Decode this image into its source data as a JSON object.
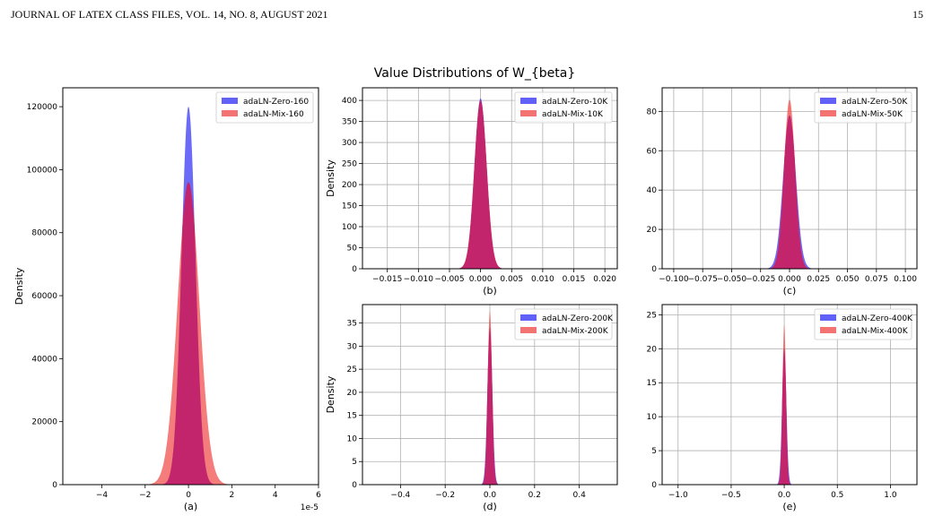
{
  "header": {
    "journal_title": "JOURNAL OF LATEX CLASS FILES, VOL. 14, NO. 8, AUGUST 2021",
    "page_number": "15"
  },
  "figure": {
    "suptitle": "Value Distributions of W_{beta}"
  },
  "colors": {
    "zero": "#3a3af5",
    "mix": "#f0504f",
    "overlap": "#c0206a",
    "grid": "#b0b0b0"
  },
  "chart_data": [
    {
      "type": "area",
      "panel": "(a)",
      "ylabel": "Density",
      "xlabel": "(a)",
      "x_offset_label": "1e-5",
      "xlim": [
        -5.8,
        6.0
      ],
      "ylim": [
        0,
        126000
      ],
      "xticks": [
        -4,
        -2,
        0,
        2,
        4,
        6
      ],
      "xtick_labels": [
        "−4",
        "−2",
        "0",
        "2",
        "4",
        "6"
      ],
      "yticks": [
        0,
        20000,
        40000,
        60000,
        80000,
        100000,
        120000
      ],
      "ytick_labels": [
        "0",
        "20000",
        "40000",
        "60000",
        "80000",
        "100000",
        "120000"
      ],
      "grid": false,
      "legend": "top-right",
      "series": [
        {
          "name": "adaLN-Zero-160",
          "peak": 120000,
          "sigma": 0.32
        },
        {
          "name": "adaLN-Mix-160",
          "peak": 96000,
          "sigma": 0.5
        }
      ]
    },
    {
      "type": "area",
      "panel": "(b)",
      "ylabel": "Density",
      "xlabel": "(b)",
      "xlim": [
        -0.019,
        0.022
      ],
      "ylim": [
        0,
        430
      ],
      "xticks": [
        -0.015,
        -0.01,
        -0.005,
        0,
        0.005,
        0.01,
        0.015,
        0.02
      ],
      "xtick_labels": [
        "−0.015",
        "−0.010",
        "−0.005",
        "0.000",
        "0.005",
        "0.010",
        "0.015",
        "0.020"
      ],
      "yticks": [
        0,
        50,
        100,
        150,
        200,
        250,
        300,
        350,
        400
      ],
      "ytick_labels": [
        "0",
        "50",
        "100",
        "150",
        "200",
        "250",
        "300",
        "350",
        "400"
      ],
      "grid": true,
      "legend": "top-right",
      "series": [
        {
          "name": "adaLN-Zero-10K",
          "peak": 405,
          "sigma": 0.00098
        },
        {
          "name": "adaLN-Mix-10K",
          "peak": 400,
          "sigma": 0.001
        }
      ]
    },
    {
      "type": "area",
      "panel": "(c)",
      "xlabel": "(c)",
      "xlim": [
        -0.11,
        0.11
      ],
      "ylim": [
        0,
        92
      ],
      "xticks": [
        -0.1,
        -0.075,
        -0.05,
        -0.025,
        0,
        0.025,
        0.05,
        0.075,
        0.1
      ],
      "xtick_labels": [
        "−0.100",
        "−0.075",
        "−0.050",
        "−0.025",
        "0.000",
        "0.025",
        "0.050",
        "0.075",
        "0.100"
      ],
      "yticks": [
        0,
        20,
        40,
        60,
        80
      ],
      "ytick_labels": [
        "0",
        "20",
        "40",
        "60",
        "80"
      ],
      "grid": true,
      "legend": "top-right",
      "series": [
        {
          "name": "adaLN-Zero-50K",
          "peak": 78,
          "sigma": 0.0055
        },
        {
          "name": "adaLN-Mix-50K",
          "peak": 86,
          "sigma": 0.0048
        }
      ]
    },
    {
      "type": "area",
      "panel": "(d)",
      "ylabel": "Density",
      "xlabel": "(d)",
      "xlim": [
        -0.57,
        0.57
      ],
      "ylim": [
        0,
        39
      ],
      "xticks": [
        -0.4,
        -0.2,
        0,
        0.2,
        0.4
      ],
      "xtick_labels": [
        "−0.4",
        "−0.2",
        "0.0",
        "0.2",
        "0.4"
      ],
      "yticks": [
        0,
        5,
        10,
        15,
        20,
        25,
        30,
        35
      ],
      "ytick_labels": [
        "0",
        "5",
        "10",
        "15",
        "20",
        "25",
        "30",
        "35"
      ],
      "grid": true,
      "legend": "top-right",
      "series": [
        {
          "name": "adaLN-Zero-200K",
          "peak": 34,
          "sigma": 0.011
        },
        {
          "name": "adaLN-Mix-200K",
          "peak": 37.5,
          "sigma": 0.01
        }
      ]
    },
    {
      "type": "area",
      "panel": "(e)",
      "xlabel": "(e)",
      "xlim": [
        -1.15,
        1.25
      ],
      "ylim": [
        0,
        26.5
      ],
      "xticks": [
        -1,
        -0.5,
        0,
        0.5,
        1
      ],
      "xtick_labels": [
        "−1.0",
        "−0.5",
        "0.0",
        "0.5",
        "1.0"
      ],
      "yticks": [
        0,
        5,
        10,
        15,
        20,
        25
      ],
      "ytick_labels": [
        "0",
        "5",
        "10",
        "15",
        "20",
        "25"
      ],
      "grid": true,
      "legend": "top-right",
      "series": [
        {
          "name": "adaLN-Zero-400K",
          "peak": 20,
          "sigma": 0.02
        },
        {
          "name": "adaLN-Mix-400K",
          "peak": 23.5,
          "sigma": 0.017
        }
      ]
    }
  ]
}
